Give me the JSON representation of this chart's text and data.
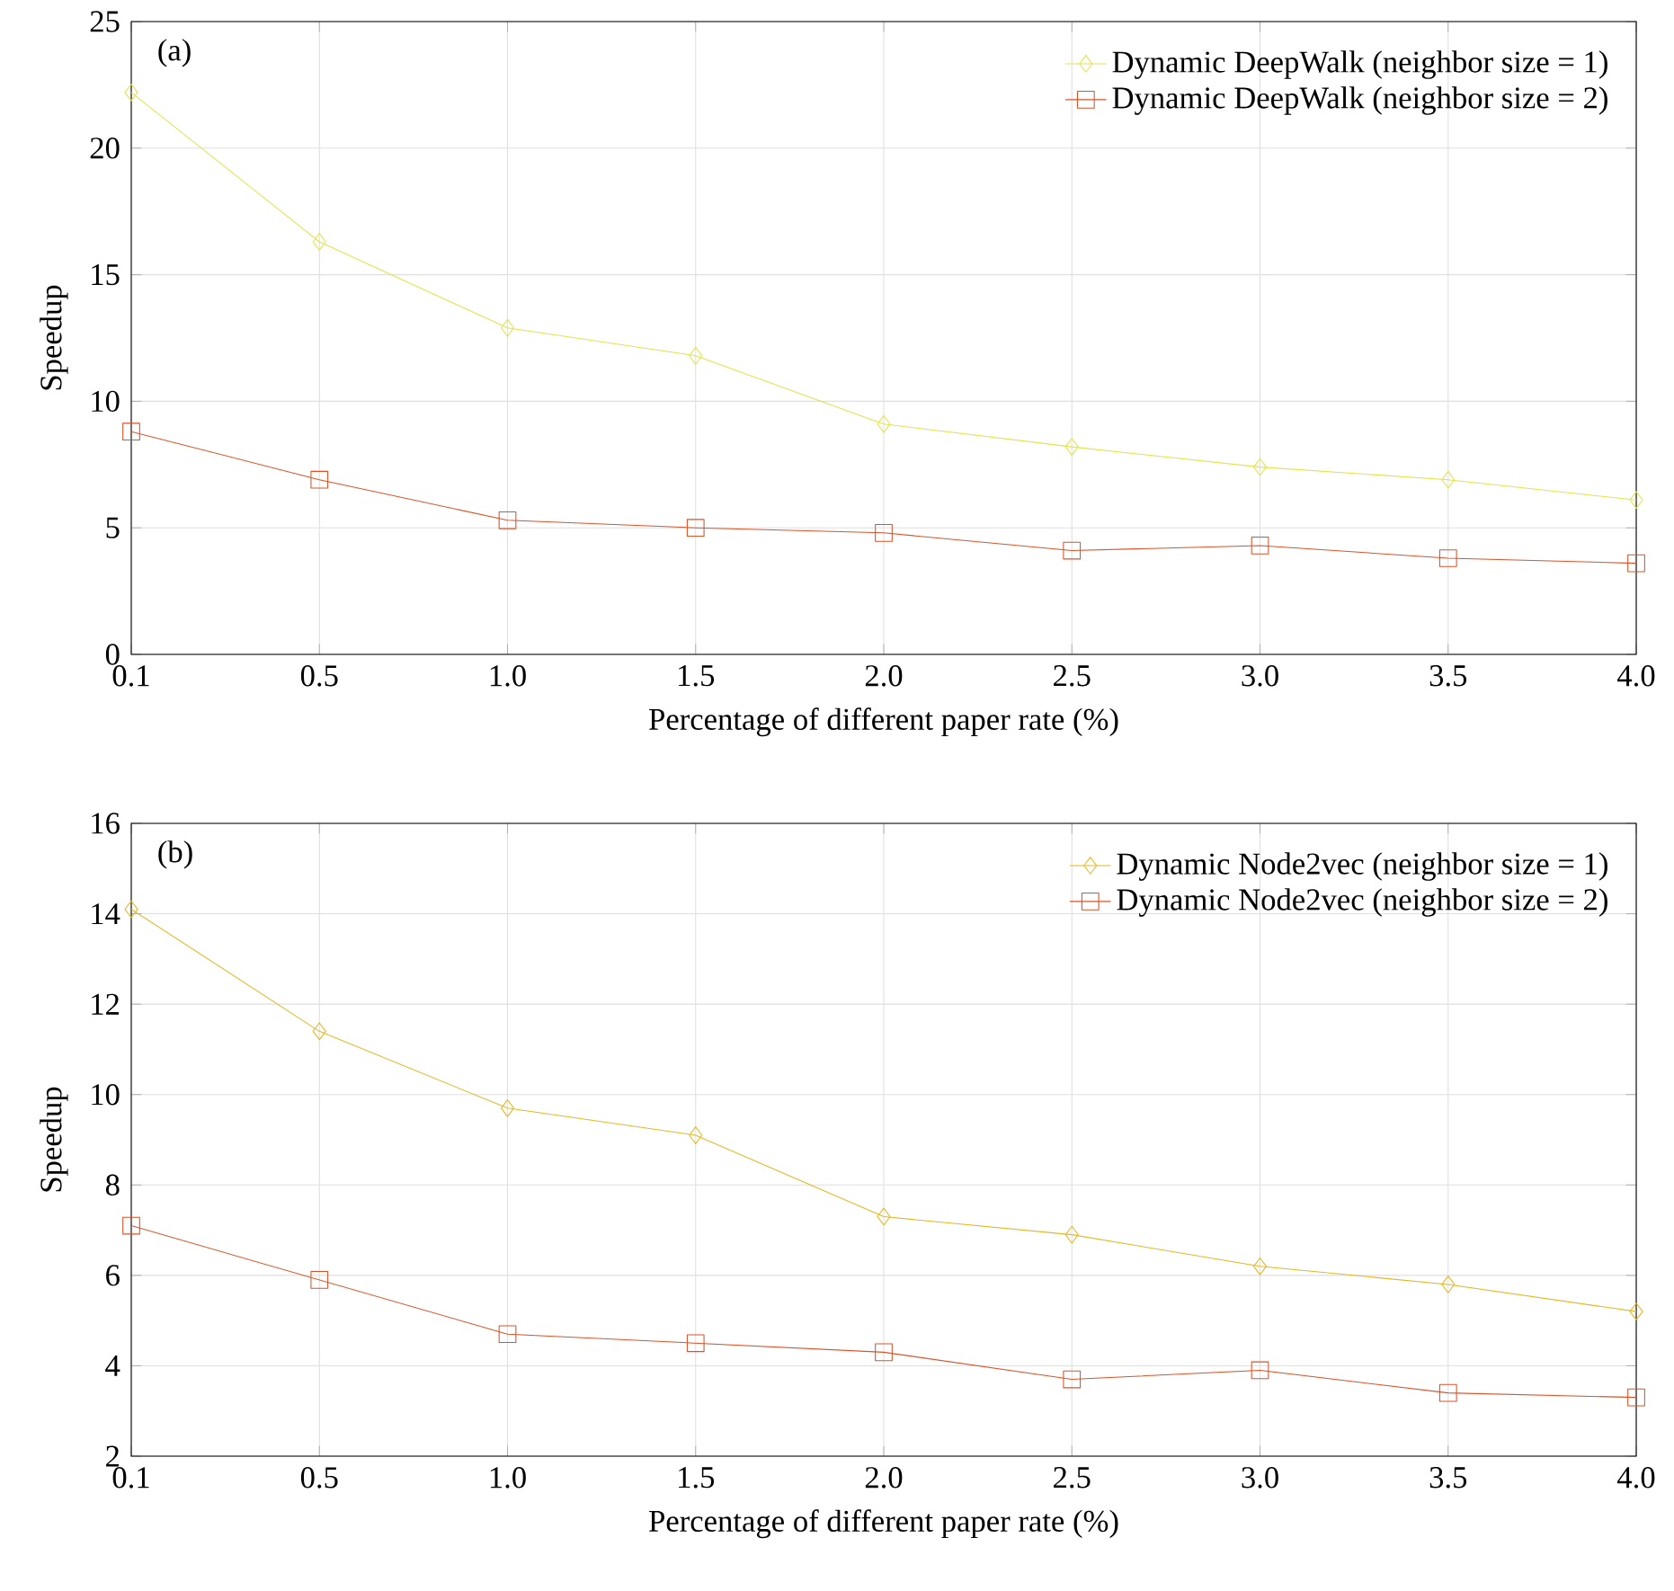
{
  "chart_data": [
    {
      "type": "line",
      "categories": [
        "0.1",
        "0.5",
        "1.0",
        "1.5",
        "2.0",
        "2.5",
        "3.0",
        "3.5",
        "4.0"
      ],
      "xlabel": "Percentage of different paper rate (%)",
      "ylabel": "Speedup",
      "ylim": [
        0,
        25
      ],
      "yticks": [
        0,
        5,
        10,
        15,
        20,
        25
      ],
      "grid": true,
      "legend": "top right",
      "annotations": [
        "(a)"
      ],
      "series": [
        {
          "name": "Dynamic DeepWalk (neighbor size = 1)",
          "color": "#e3e34a",
          "marker": "diamond",
          "values": [
            22.2,
            16.3,
            12.9,
            11.8,
            9.1,
            8.2,
            7.4,
            6.9,
            6.1
          ]
        },
        {
          "name": "Dynamic DeepWalk (neighbor size = 2)",
          "color": "#d9542a",
          "marker": "square",
          "values": [
            8.8,
            6.9,
            5.3,
            5.0,
            4.8,
            4.1,
            4.3,
            3.8,
            3.6
          ]
        }
      ]
    },
    {
      "type": "line",
      "categories": [
        "0.1",
        "0.5",
        "1.0",
        "1.5",
        "2.0",
        "2.5",
        "3.0",
        "3.5",
        "4.0"
      ],
      "xlabel": "Percentage of different paper rate (%)",
      "ylabel": "Speedup",
      "ylim": [
        2,
        16
      ],
      "yticks": [
        2,
        4,
        6,
        8,
        10,
        12,
        14,
        16
      ],
      "grid": true,
      "legend": "top right",
      "annotations": [
        "(b)"
      ],
      "series": [
        {
          "name": "Dynamic Node2vec (neighbor size = 1)",
          "color": "#e6b722",
          "marker": "diamond",
          "values": [
            14.1,
            11.4,
            9.7,
            9.1,
            7.3,
            6.9,
            6.2,
            5.8,
            5.2
          ]
        },
        {
          "name": "Dynamic Node2vec (neighbor size = 2)",
          "color": "#d9542a",
          "marker": "square",
          "values": [
            7.1,
            5.9,
            4.7,
            4.5,
            4.3,
            3.7,
            3.9,
            3.4,
            3.3
          ]
        }
      ]
    }
  ]
}
